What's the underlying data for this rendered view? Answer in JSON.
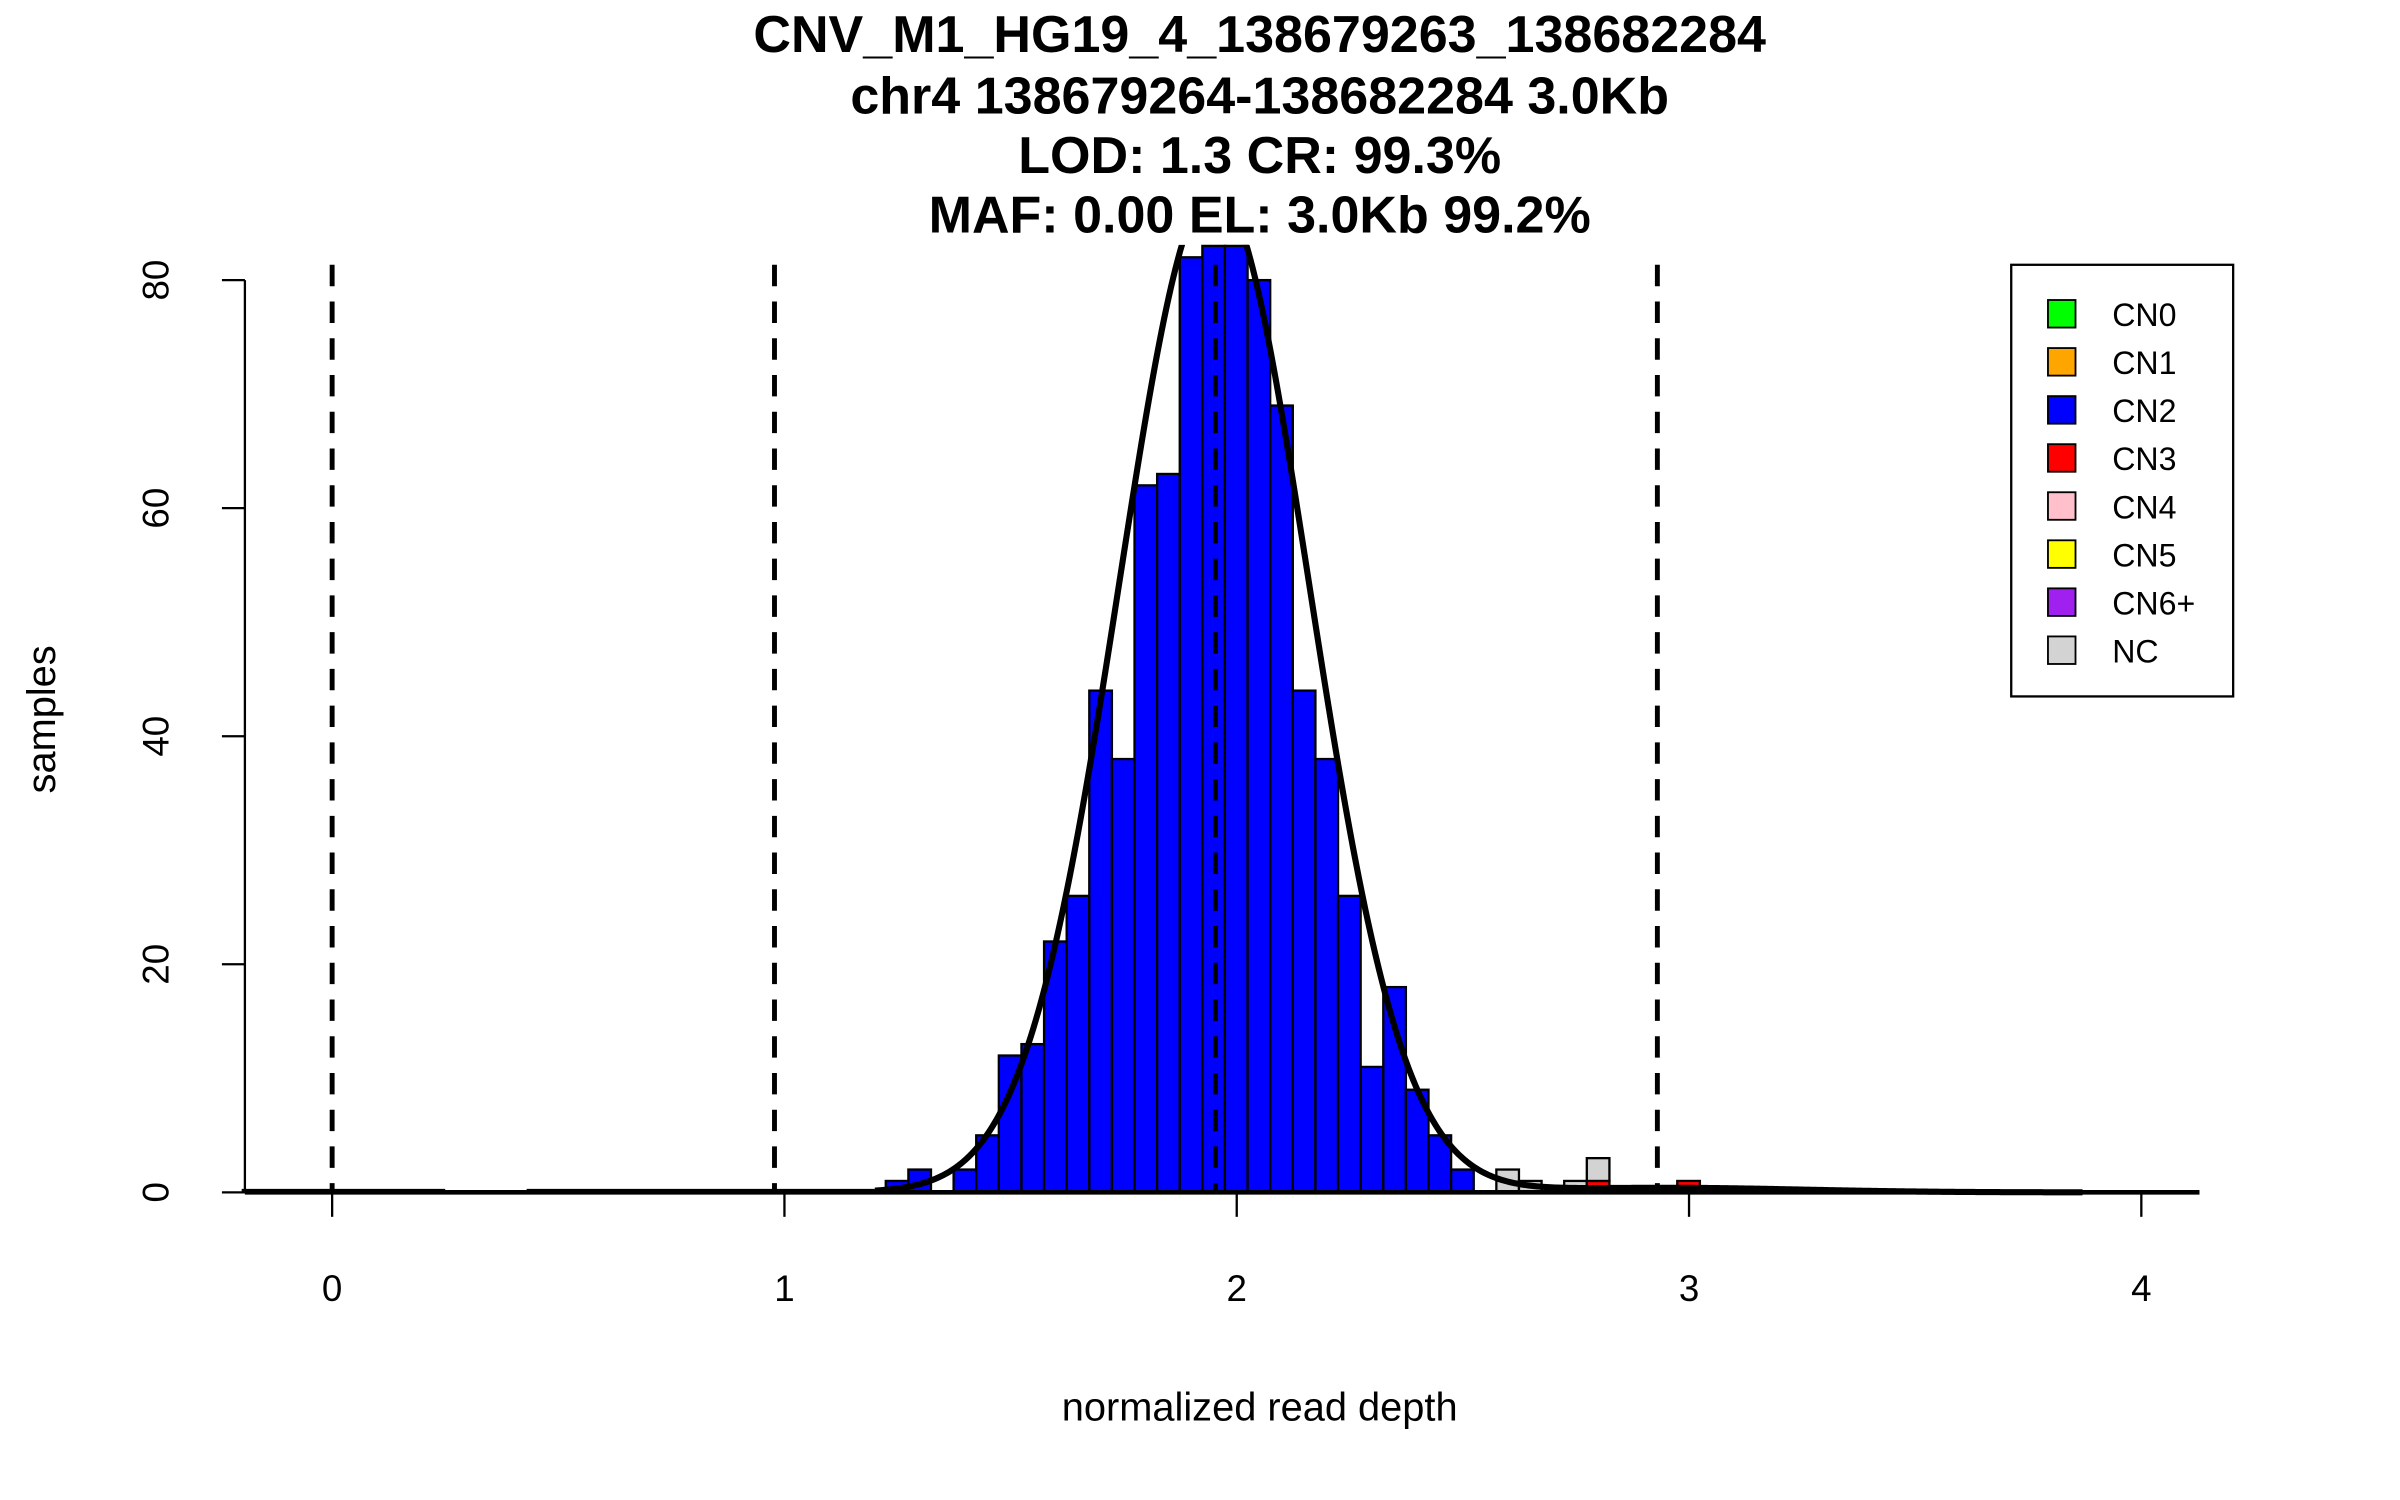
{
  "chart_data": {
    "type": "bar",
    "title_lines": [
      "CNV_M1_HG19_4_138679263_138682284",
      "chr4 138679264-138682284 3.0Kb",
      "LOD: 1.3 CR: 99.3%",
      "MAF: 0.00 EL: 3.0Kb 99.2%"
    ],
    "xlabel": "normalized read depth",
    "ylabel": "samples",
    "xlim": [
      -0.2,
      4.1
    ],
    "ylim": [
      0,
      83
    ],
    "x_ticks": [
      "0",
      "1",
      "2",
      "3",
      "4"
    ],
    "y_ticks": [
      "0",
      "20",
      "40",
      "60",
      "80"
    ],
    "bin_width": 0.05,
    "bars": [
      {
        "x": 1.224,
        "CN2": 1
      },
      {
        "x": 1.274,
        "CN2": 2
      },
      {
        "x": 1.374,
        "CN2": 2
      },
      {
        "x": 1.424,
        "CN2": 5
      },
      {
        "x": 1.474,
        "CN2": 12
      },
      {
        "x": 1.524,
        "CN2": 13
      },
      {
        "x": 1.574,
        "CN2": 22
      },
      {
        "x": 1.624,
        "CN2": 26
      },
      {
        "x": 1.674,
        "CN2": 44
      },
      {
        "x": 1.724,
        "CN2": 38
      },
      {
        "x": 1.774,
        "CN2": 62
      },
      {
        "x": 1.824,
        "CN2": 63
      },
      {
        "x": 1.874,
        "CN2": 82
      },
      {
        "x": 1.924,
        "CN2": 83
      },
      {
        "x": 1.974,
        "CN2": 83
      },
      {
        "x": 2.024,
        "CN2": 80
      },
      {
        "x": 2.074,
        "CN2": 69
      },
      {
        "x": 2.124,
        "CN2": 44
      },
      {
        "x": 2.174,
        "CN2": 38
      },
      {
        "x": 2.224,
        "CN2": 26
      },
      {
        "x": 2.274,
        "CN2": 11
      },
      {
        "x": 2.324,
        "CN2": 18
      },
      {
        "x": 2.374,
        "CN2": 9
      },
      {
        "x": 2.424,
        "CN2": 5
      },
      {
        "x": 2.474,
        "CN2": 2
      },
      {
        "x": 2.574,
        "NC": 2
      },
      {
        "x": 2.624,
        "NC": 1
      },
      {
        "x": 2.724,
        "NC": 1
      },
      {
        "x": 2.774,
        "CN3": 1,
        "NC": 2
      },
      {
        "x": 2.974,
        "CN3": 1
      }
    ],
    "dashed_lines": [
      0,
      0.978,
      1.953,
      2.93
    ],
    "fit_curve": {
      "components": [
        {
          "mean": 1.95,
          "sd": 0.21,
          "peak": 88
        },
        {
          "mean": 2.95,
          "sd": 0.3,
          "peak": 0.4
        }
      ],
      "range": [
        1.2,
        3.87
      ],
      "flat_segments": [
        [
          -0.2,
          0.25
        ],
        [
          0.43,
          1.2
        ]
      ],
      "flat_level": 0.1
    },
    "legend": {
      "placement": "top-right",
      "entries": [
        {
          "label": "CN0",
          "color": "#00ff00"
        },
        {
          "label": "CN1",
          "color": "#ffa500"
        },
        {
          "label": "CN2",
          "color": "#0000ff"
        },
        {
          "label": "CN3",
          "color": "#ff0000"
        },
        {
          "label": "CN4",
          "color": "#ffc0cb"
        },
        {
          "label": "CN5",
          "color": "#ffff00"
        },
        {
          "label": "CN6+",
          "color": "#a020f0"
        },
        {
          "label": "NC",
          "color": "#d3d3d3"
        }
      ]
    }
  }
}
